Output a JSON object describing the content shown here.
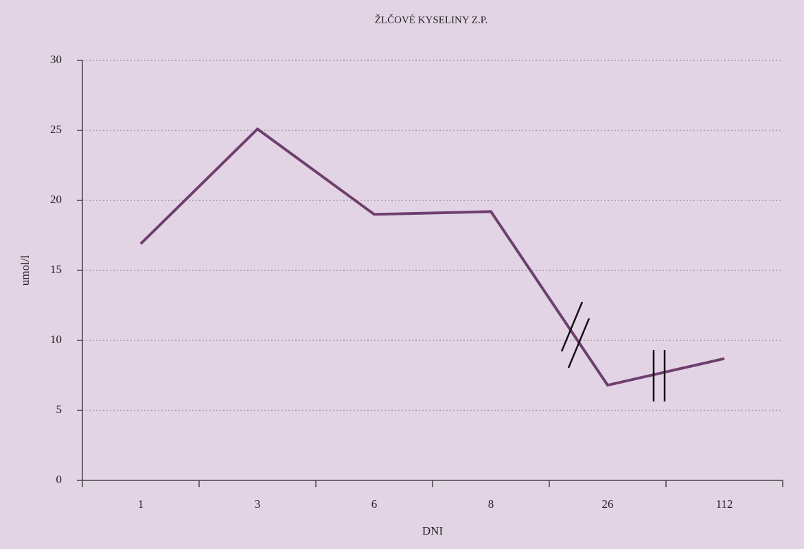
{
  "chart_data": {
    "type": "line",
    "title": "ŽLČOVÉ KYSELINY Z.P.",
    "x_label": "DNI",
    "y_label": "umol/l",
    "categories": [
      "1",
      "3",
      "6",
      "8",
      "26",
      "112"
    ],
    "values": [
      16.9,
      25.1,
      19.0,
      19.2,
      6.8,
      8.7
    ],
    "color": "#6e3f6e",
    "ylim": [
      0,
      30
    ],
    "yticks": [
      0,
      5,
      10,
      15,
      20,
      25,
      30
    ],
    "grid": true
  }
}
